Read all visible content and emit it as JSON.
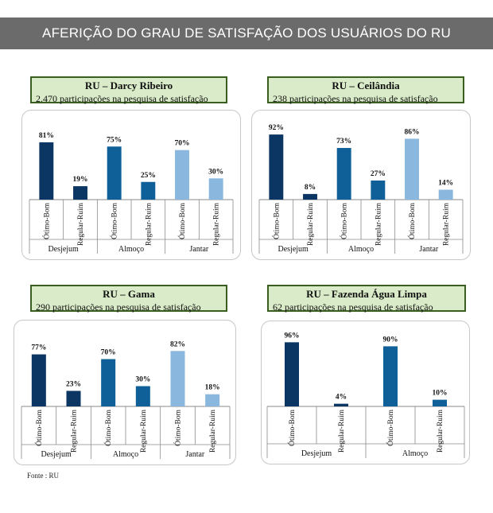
{
  "header": {
    "title": "AFERIÇÃO DO GRAU DE SATISFAÇÃO DOS USUÁRIOS DO RU"
  },
  "colors": {
    "desjejum": "#0b3663",
    "almoco": "#0f6099",
    "jantar": "#8ab7dd",
    "banner": "#6b6b6b"
  },
  "source": "Fonte : RU",
  "chart_data": [
    {
      "type": "bar",
      "title": "RU – Darcy Ribeiro",
      "subtitle": "2.470 participações na pesquisa de satisfação",
      "groups": [
        "Desjejum",
        "Almoço",
        "Jantar"
      ],
      "categories": [
        "Ótimo-Bom",
        "Regular-Ruim",
        "Ótimo-Bom",
        "Regular-Ruim",
        "Ótimo-Bom",
        "Regular-Ruim"
      ],
      "values": [
        81,
        19,
        75,
        25,
        70,
        30
      ],
      "labels": [
        "81%",
        "19%",
        "75%",
        "25%",
        "70%",
        "30%"
      ],
      "ylim": [
        0,
        100
      ]
    },
    {
      "type": "bar",
      "title": "RU – Ceilândia",
      "subtitle": "238 participações na pesquisa de satisfação",
      "groups": [
        "Desjejum",
        "Almoço",
        "Jantar"
      ],
      "categories": [
        "Ótimo-Bom",
        "Regular-Ruim",
        "Ótimo-Bom",
        "Regular-Ruim",
        "Ótimo-Bom",
        "Regular-Ruim"
      ],
      "values": [
        92,
        8,
        73,
        27,
        86,
        14
      ],
      "labels": [
        "92%",
        "8%",
        "73%",
        "27%",
        "86%",
        "14%"
      ],
      "ylim": [
        0,
        100
      ]
    },
    {
      "type": "bar",
      "title": "RU – Gama",
      "subtitle": "290 participações na pesquisa de satisfação",
      "groups": [
        "Desjejum",
        "Almoço",
        "Jantar"
      ],
      "categories": [
        "Ótimo-Bom",
        "Regular-Ruim",
        "Ótimo-Bom",
        "Regular-Ruim",
        "Ótimo-Bom",
        "Regular-Ruim"
      ],
      "values": [
        77,
        23,
        70,
        30,
        82,
        18
      ],
      "labels": [
        "77%",
        "23%",
        "70%",
        "30%",
        "82%",
        "18%"
      ],
      "ylim": [
        0,
        100
      ]
    },
    {
      "type": "bar",
      "title": "RU – Fazenda Água Limpa",
      "subtitle": "62  participações na pesquisa de satisfação",
      "groups": [
        "Desjejum",
        "Almoço"
      ],
      "categories": [
        "Ótimo-Bom",
        "Regular-Ruim",
        "Ótimo-Bom",
        "Regular-Ruim"
      ],
      "values": [
        96,
        4,
        90,
        10
      ],
      "labels": [
        "96%",
        "4%",
        "90%",
        "10%"
      ],
      "ylim": [
        0,
        100
      ]
    }
  ]
}
